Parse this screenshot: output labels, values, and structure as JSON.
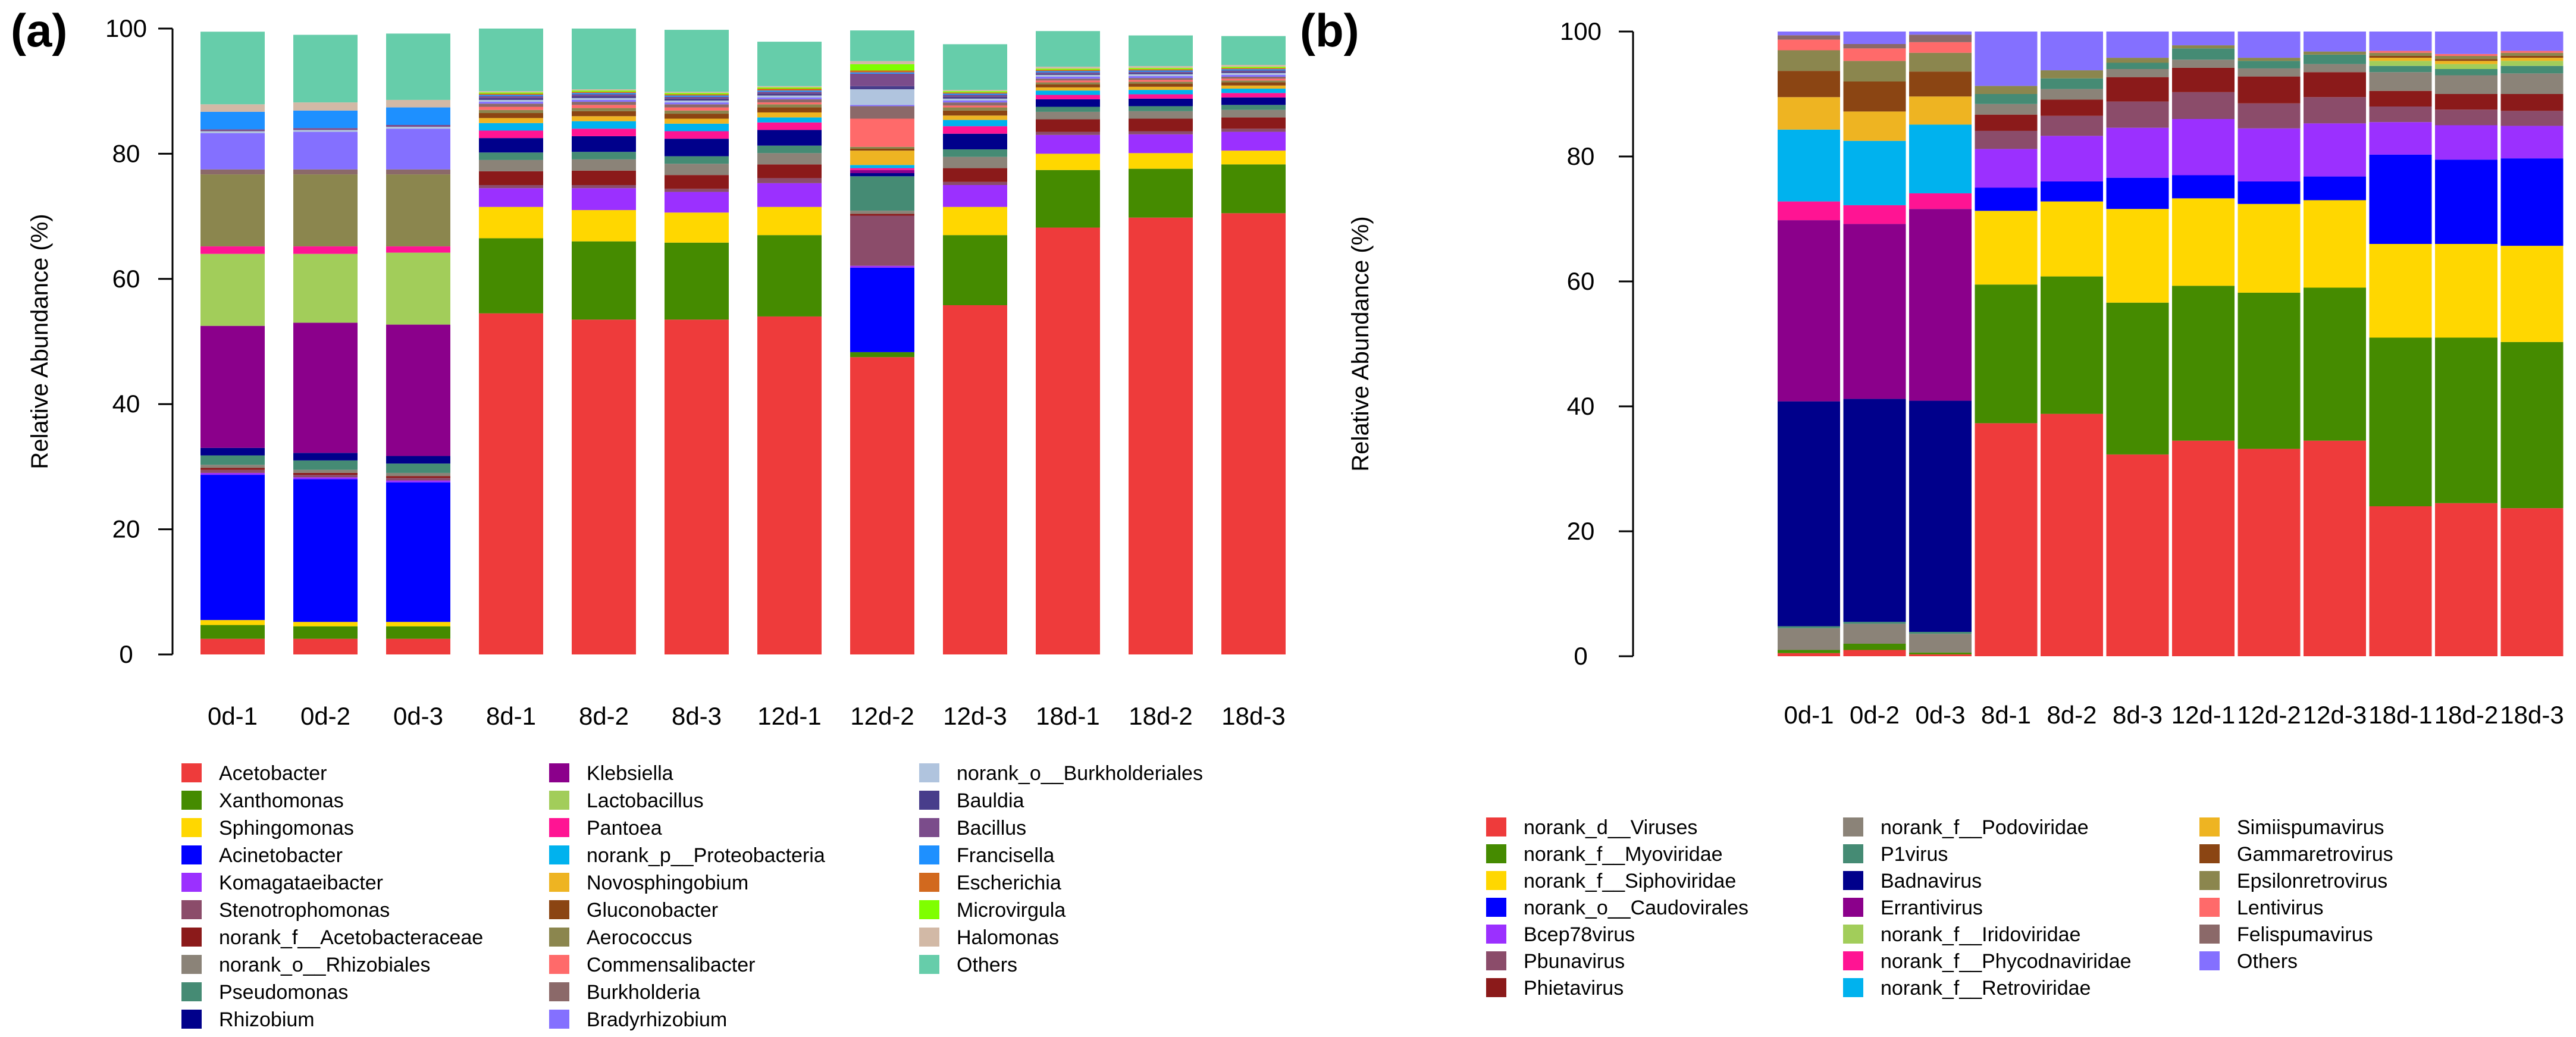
{
  "figure": {
    "panels": [
      "(a)",
      "(b)"
    ]
  },
  "chart_data": [
    {
      "panel_label": "(a)",
      "type": "bar",
      "stacked": true,
      "ylabel": "Relative Abundance (%)",
      "xlabel": "",
      "ylim": [
        0,
        100
      ],
      "yticks": [
        0,
        20,
        40,
        60,
        80,
        100
      ],
      "grid": false,
      "legend_position": "bottom",
      "categories": [
        "0d-1",
        "0d-2",
        "0d-3",
        "8d-1",
        "8d-2",
        "8d-3",
        "12d-1",
        "12d-2",
        "12d-3",
        "18d-1",
        "18d-2",
        "18d-3"
      ],
      "series": [
        {
          "name": "Acetobacter",
          "color": "#EE3B3B",
          "values": [
            2.5,
            2.5,
            2.5,
            54.5,
            53.5,
            53.5,
            54.0,
            47.5,
            55.8,
            68.2,
            69.8,
            70.5
          ]
        },
        {
          "name": "Xanthomonas",
          "color": "#458B00",
          "values": [
            2.2,
            2.0,
            2.0,
            12.0,
            12.5,
            12.3,
            13.0,
            0.8,
            11.2,
            9.2,
            7.8,
            7.8
          ]
        },
        {
          "name": "Sphingomonas",
          "color": "#FFD700",
          "values": [
            0.8,
            0.7,
            0.7,
            5.0,
            5.0,
            4.8,
            4.5,
            0.0,
            4.5,
            2.6,
            2.5,
            2.2
          ]
        },
        {
          "name": "Acinetobacter",
          "color": "#0000FF",
          "values": [
            23.2,
            22.8,
            22.3,
            0.0,
            0.0,
            0.0,
            0.0,
            13.5,
            0.0,
            0.0,
            0.0,
            0.0
          ]
        },
        {
          "name": "Komagataeibacter",
          "color": "#9B30FF",
          "values": [
            0.3,
            0.3,
            0.3,
            3.0,
            3.5,
            3.3,
            3.8,
            0.3,
            3.5,
            3.0,
            3.0,
            3.0
          ]
        },
        {
          "name": "Stenotrophomonas",
          "color": "#8B4C6A",
          "values": [
            0.5,
            0.4,
            0.4,
            0.5,
            0.5,
            0.5,
            0.8,
            8.0,
            0.5,
            0.5,
            0.5,
            0.5
          ]
        },
        {
          "name": "norank_f__Acetobacteraceae",
          "color": "#8B1A1A",
          "values": [
            0.3,
            0.3,
            0.3,
            2.2,
            2.3,
            2.2,
            2.2,
            0.3,
            2.2,
            2.0,
            2.0,
            1.8
          ]
        },
        {
          "name": "norank_o__Rhizobiales",
          "color": "#8B8378",
          "values": [
            0.5,
            0.5,
            0.5,
            1.8,
            1.8,
            1.8,
            1.8,
            0.5,
            1.8,
            1.2,
            1.2,
            1.2
          ]
        },
        {
          "name": "Pseudomonas",
          "color": "#458B74",
          "values": [
            1.5,
            1.5,
            1.5,
            1.2,
            1.2,
            1.2,
            1.2,
            5.5,
            1.2,
            0.8,
            0.8,
            0.8
          ]
        },
        {
          "name": "Rhizobium",
          "color": "#00008B",
          "values": [
            1.2,
            1.2,
            1.2,
            2.3,
            2.5,
            2.8,
            2.5,
            0.5,
            2.5,
            1.2,
            1.2,
            1.2
          ]
        },
        {
          "name": "Klebsiella",
          "color": "#8B008B",
          "values": [
            19.5,
            20.8,
            21.0,
            0.0,
            0.0,
            0.0,
            0.0,
            0.5,
            0.0,
            0.0,
            0.0,
            0.0
          ]
        },
        {
          "name": "Lactobacillus",
          "color": "#A2CD5A",
          "values": [
            11.5,
            11.0,
            11.5,
            0.0,
            0.0,
            0.0,
            0.0,
            0.0,
            0.0,
            0.0,
            0.0,
            0.0
          ]
        },
        {
          "name": "Pantoea",
          "color": "#FF1493",
          "values": [
            1.2,
            1.2,
            1.0,
            1.2,
            1.2,
            1.2,
            1.2,
            0.3,
            1.2,
            0.7,
            0.7,
            0.7
          ]
        },
        {
          "name": "norank_p__Proteobacteria",
          "color": "#00B2EE",
          "values": [
            0.0,
            0.0,
            0.0,
            1.2,
            1.2,
            1.2,
            0.8,
            0.5,
            1.0,
            0.7,
            0.7,
            0.7
          ]
        },
        {
          "name": "Novosphingobium",
          "color": "#EEB422",
          "values": [
            0.0,
            0.0,
            0.0,
            0.8,
            0.8,
            0.8,
            0.8,
            2.3,
            0.7,
            0.5,
            0.5,
            0.5
          ]
        },
        {
          "name": "Gluconobacter",
          "color": "#8B4513",
          "values": [
            0.0,
            0.0,
            0.0,
            0.8,
            0.8,
            0.8,
            0.8,
            0.3,
            0.8,
            0.5,
            0.5,
            0.5
          ]
        },
        {
          "name": "Aerococcus",
          "color": "#8B864E",
          "values": [
            11.5,
            11.5,
            11.5,
            0.5,
            0.5,
            0.5,
            0.5,
            0.3,
            0.5,
            0.3,
            0.3,
            0.3
          ]
        },
        {
          "name": "Commensalibacter",
          "color": "#FF6A6A",
          "values": [
            0.0,
            0.0,
            0.0,
            0.5,
            0.5,
            0.5,
            0.3,
            4.5,
            0.3,
            0.3,
            0.3,
            0.3
          ]
        },
        {
          "name": "Burkholderia",
          "color": "#8B6969",
          "values": [
            0.8,
            0.8,
            0.8,
            0.5,
            0.5,
            0.5,
            0.5,
            2.0,
            0.5,
            0.3,
            0.3,
            0.3
          ]
        },
        {
          "name": "Bradyrhizobium",
          "color": "#8470FF",
          "values": [
            5.8,
            6.0,
            6.5,
            0.3,
            0.3,
            0.3,
            0.3,
            0.2,
            0.3,
            0.3,
            0.3,
            0.3
          ]
        },
        {
          "name": "norank_o__Burkholderiales",
          "color": "#B0C4DE",
          "values": [
            0.3,
            0.3,
            0.3,
            0.3,
            0.3,
            0.3,
            0.3,
            2.5,
            0.3,
            0.3,
            0.3,
            0.3
          ]
        },
        {
          "name": "Bauldia",
          "color": "#483D8B",
          "values": [
            0.0,
            0.0,
            0.0,
            0.3,
            0.3,
            0.3,
            0.3,
            0.5,
            0.3,
            0.2,
            0.2,
            0.2
          ]
        },
        {
          "name": "Bacillus",
          "color": "#7B4C8B",
          "values": [
            0.3,
            0.3,
            0.3,
            0.3,
            0.3,
            0.3,
            0.3,
            2.0,
            0.3,
            0.2,
            0.2,
            0.2
          ]
        },
        {
          "name": "Francisella",
          "color": "#1E90FF",
          "values": [
            2.8,
            2.8,
            2.8,
            0.2,
            0.2,
            0.2,
            0.2,
            0.2,
            0.2,
            0.2,
            0.2,
            0.2
          ]
        },
        {
          "name": "Escherichia",
          "color": "#D2691E",
          "values": [
            0.0,
            0.0,
            0.0,
            0.2,
            0.2,
            0.2,
            0.3,
            0.3,
            0.2,
            0.2,
            0.2,
            0.2
          ]
        },
        {
          "name": "Microvirgula",
          "color": "#7FFF00",
          "values": [
            0.0,
            0.0,
            0.0,
            0.2,
            0.2,
            0.2,
            0.2,
            1.0,
            0.2,
            0.2,
            0.2,
            0.2
          ]
        },
        {
          "name": "Halomonas",
          "color": "#D2B9A6",
          "values": [
            1.2,
            1.3,
            1.2,
            0.2,
            0.2,
            0.2,
            0.2,
            0.5,
            0.2,
            0.3,
            0.3,
            0.3
          ]
        },
        {
          "name": "Others",
          "color": "#66CDAA",
          "values": [
            11.6,
            10.8,
            10.6,
            10.0,
            9.7,
            9.9,
            7.1,
            4.9,
            7.3,
            5.7,
            4.9,
            4.6
          ]
        }
      ]
    },
    {
      "panel_label": "(b)",
      "type": "bar",
      "stacked": true,
      "ylabel": "Relative Abundance (%)",
      "xlabel": "",
      "ylim": [
        0,
        100
      ],
      "yticks": [
        0,
        20,
        40,
        60,
        80,
        100
      ],
      "grid": false,
      "legend_position": "bottom",
      "categories": [
        "0d-1",
        "0d-2",
        "0d-3",
        "8d-1",
        "8d-2",
        "8d-3",
        "12d-1",
        "12d-2",
        "12d-3",
        "18d-1",
        "18d-2",
        "18d-3"
      ],
      "series": [
        {
          "name": "norank_d__Viruses",
          "color": "#EE3B3B",
          "values": [
            0.5,
            1.0,
            0.3,
            37.3,
            38.8,
            32.3,
            34.5,
            33.2,
            34.5,
            24.0,
            24.5,
            23.7
          ]
        },
        {
          "name": "norank_f__Myoviridae",
          "color": "#458B00",
          "values": [
            0.5,
            1.0,
            0.3,
            22.2,
            22.0,
            24.3,
            24.8,
            25.0,
            24.5,
            27.0,
            26.5,
            26.6
          ]
        },
        {
          "name": "norank_f__Siphoviridae",
          "color": "#FFD700",
          "values": [
            0.0,
            0.0,
            0.0,
            11.8,
            12.0,
            15.0,
            14.0,
            14.2,
            14.0,
            15.0,
            15.0,
            15.4
          ]
        },
        {
          "name": "norank_o__Caudovirales",
          "color": "#0000FF",
          "values": [
            0.0,
            0.0,
            0.0,
            3.7,
            3.2,
            5.0,
            3.7,
            3.6,
            3.8,
            14.3,
            13.5,
            14.0
          ]
        },
        {
          "name": "Bcep78virus",
          "color": "#9B30FF",
          "values": [
            0.0,
            0.0,
            0.0,
            6.2,
            7.3,
            8.0,
            9.0,
            8.5,
            8.5,
            5.2,
            5.5,
            5.2
          ]
        },
        {
          "name": "Pbunavirus",
          "color": "#8B4C6A",
          "values": [
            0.0,
            0.0,
            0.0,
            2.9,
            3.2,
            4.2,
            4.3,
            4.0,
            4.2,
            2.5,
            2.5,
            2.4
          ]
        },
        {
          "name": "Phietavirus",
          "color": "#8B1A1A",
          "values": [
            0.0,
            0.0,
            0.0,
            2.6,
            2.6,
            3.9,
            3.9,
            4.3,
            4.0,
            2.5,
            2.5,
            2.7
          ]
        },
        {
          "name": "norank_f__Podoviridae",
          "color": "#8B8378",
          "values": [
            3.5,
            3.2,
            3.0,
            1.7,
            1.7,
            1.3,
            1.3,
            1.3,
            1.3,
            3.0,
            3.0,
            3.3
          ]
        },
        {
          "name": "P1virus",
          "color": "#458B74",
          "values": [
            0.3,
            0.3,
            0.3,
            1.6,
            1.7,
            1.0,
            1.8,
            1.2,
            1.5,
            1.0,
            1.0,
            1.2
          ]
        },
        {
          "name": "Badnavirus",
          "color": "#00008B",
          "values": [
            36.0,
            35.7,
            37.0,
            0.0,
            0.0,
            0.0,
            0.0,
            0.0,
            0.0,
            0.0,
            0.0,
            0.0
          ]
        },
        {
          "name": "Errantivirus",
          "color": "#8B008B",
          "values": [
            29.0,
            28.0,
            30.7,
            0.0,
            0.0,
            0.0,
            0.0,
            0.0,
            0.0,
            0.0,
            0.0,
            0.0
          ]
        },
        {
          "name": "norank_f__Iridoviridae",
          "color": "#A2CD5A",
          "values": [
            0.0,
            0.0,
            0.0,
            0.0,
            0.0,
            0.0,
            0.0,
            0.0,
            0.0,
            0.8,
            0.8,
            0.8
          ]
        },
        {
          "name": "norank_f__Phycodnaviridae",
          "color": "#FF1493",
          "values": [
            3.0,
            3.0,
            2.5,
            0.0,
            0.0,
            0.0,
            0.0,
            0.0,
            0.0,
            0.0,
            0.0,
            0.0
          ]
        },
        {
          "name": "norank_f__Retroviridae",
          "color": "#00B2EE",
          "values": [
            11.5,
            10.3,
            11.0,
            0.0,
            0.0,
            0.0,
            0.0,
            0.0,
            0.0,
            0.0,
            0.0,
            0.0
          ]
        },
        {
          "name": "Simiispumavirus",
          "color": "#EEB422",
          "values": [
            5.2,
            4.7,
            4.5,
            0.0,
            0.0,
            0.0,
            0.0,
            0.0,
            0.0,
            0.5,
            0.5,
            0.5
          ]
        },
        {
          "name": "Gammaretrovirus",
          "color": "#8B4513",
          "values": [
            4.2,
            4.8,
            4.0,
            0.0,
            0.0,
            0.0,
            0.0,
            0.0,
            0.0,
            0.3,
            0.3,
            0.3
          ]
        },
        {
          "name": "Epsilonretrovirus",
          "color": "#8B864E",
          "values": [
            3.3,
            3.3,
            3.0,
            1.3,
            1.3,
            0.8,
            0.5,
            0.5,
            0.5,
            0.5,
            0.5,
            0.5
          ]
        },
        {
          "name": "Lentivirus",
          "color": "#FF6A6A",
          "values": [
            1.7,
            2.0,
            1.7,
            0.0,
            0.0,
            0.0,
            0.0,
            0.0,
            0.0,
            0.3,
            0.3,
            0.3
          ]
        },
        {
          "name": "Felispumavirus",
          "color": "#8B6969",
          "values": [
            0.7,
            0.7,
            1.2,
            0.0,
            0.0,
            0.0,
            0.0,
            0.0,
            0.0,
            0.0,
            0.0,
            0.0
          ]
        },
        {
          "name": "Others",
          "color": "#8470FF",
          "values": [
            0.6,
            2.0,
            0.5,
            8.7,
            6.2,
            4.2,
            2.2,
            4.2,
            3.2,
            3.1,
            3.6,
            3.1
          ]
        }
      ]
    }
  ]
}
